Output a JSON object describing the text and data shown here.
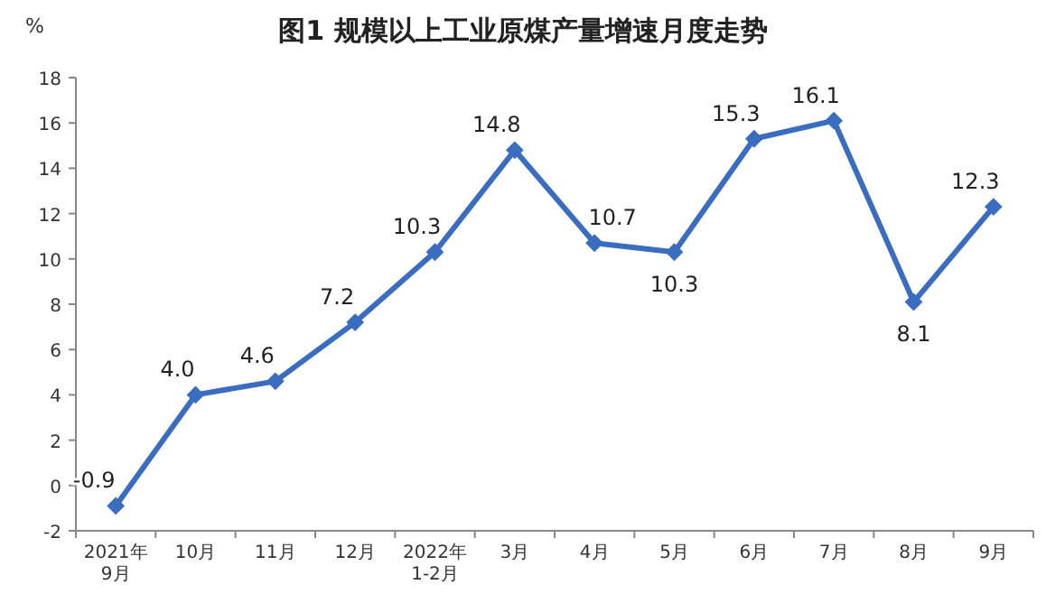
{
  "chart_data": {
    "type": "line",
    "title": "图1  规模以上工业原煤产量增速月度走势",
    "ylabel": "%",
    "categories": [
      "2021年\n9月",
      "10月",
      "11月",
      "12月",
      "2022年\n1-2月",
      "3月",
      "4月",
      "5月",
      "6月",
      "7月",
      "8月",
      "9月"
    ],
    "series": [
      {
        "color": "#3a6cc0",
        "values": [
          -0.9,
          4.0,
          4.6,
          7.2,
          10.3,
          14.8,
          10.7,
          10.3,
          15.3,
          16.1,
          8.1,
          12.3
        ]
      }
    ],
    "value_labels": [
      "-0.9",
      "4.0",
      "4.6",
      "7.2",
      "10.3",
      "14.8",
      "10.7",
      "10.3",
      "15.3",
      "16.1",
      "8.1",
      "12.3"
    ],
    "ylim": [
      -2,
      18
    ],
    "yticks": [
      -2,
      0,
      2,
      4,
      6,
      8,
      10,
      12,
      14,
      16,
      18
    ],
    "marker": "diamond",
    "grid": false
  }
}
